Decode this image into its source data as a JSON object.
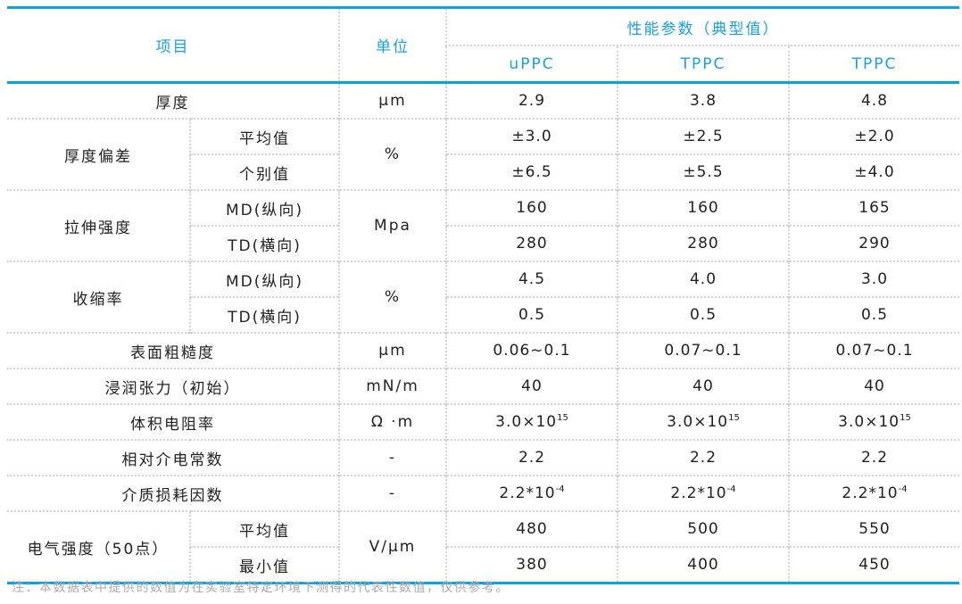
{
  "colors": {
    "accent": "#0aa3dd",
    "header_text": "#1aa0dc",
    "note_text": "#aaaaaa"
  },
  "header": {
    "item": "项目",
    "unit": "单位",
    "group": "性能参数（典型值）",
    "products": [
      "uPPC",
      "TPPC",
      "TPPC"
    ]
  },
  "rows": [
    {
      "item": "厚度",
      "unit": "μm",
      "values": [
        "2.9",
        "3.8",
        "4.8"
      ]
    },
    {
      "item": "厚度偏差",
      "unit": "%",
      "sub": [
        {
          "label": "平均值",
          "values": [
            "±3.0",
            "±2.5",
            "±2.0"
          ]
        },
        {
          "label": "个别值",
          "values": [
            "±6.5",
            "±5.5",
            "±4.0"
          ]
        }
      ]
    },
    {
      "item": "拉伸强度",
      "unit": "Mpa",
      "sub": [
        {
          "label": "MD(纵向)",
          "values": [
            "160",
            "160",
            "165"
          ]
        },
        {
          "label": "TD(横向)",
          "values": [
            "280",
            "280",
            "290"
          ]
        }
      ]
    },
    {
      "item": "收缩率",
      "unit": "%",
      "sub": [
        {
          "label": "MD(纵向)",
          "values": [
            "4.5",
            "4.0",
            "3.0"
          ]
        },
        {
          "label": "TD(横向)",
          "values": [
            "0.5",
            "0.5",
            "0.5"
          ]
        }
      ]
    },
    {
      "item": "表面粗糙度",
      "unit": "μm",
      "values": [
        "0.06~0.1",
        "0.07~0.1",
        "0.07~0.1"
      ]
    },
    {
      "item": "浸润张力（初始）",
      "unit": "mN/m",
      "values": [
        "40",
        "40",
        "40"
      ]
    },
    {
      "item": "体积电阻率",
      "unit": "Ω ·m",
      "values": [
        {
          "base": "3.0×10",
          "sup": "15"
        },
        {
          "base": "3.0×10",
          "sup": "15"
        },
        {
          "base": "3.0×10",
          "sup": "15"
        }
      ]
    },
    {
      "item": "相对介电常数",
      "unit": "-",
      "values": [
        "2.2",
        "2.2",
        "2.2"
      ]
    },
    {
      "item": "介质损耗因数",
      "unit": "-",
      "values": [
        {
          "base": "2.2*10",
          "sup": "-4"
        },
        {
          "base": "2.2*10",
          "sup": "-4"
        },
        {
          "base": "2.2*10",
          "sup": "-4"
        }
      ]
    },
    {
      "item": "电气强度（50点）",
      "unit": "V/μm",
      "sub": [
        {
          "label": "平均值",
          "values": [
            "480",
            "500",
            "550"
          ]
        },
        {
          "label": "最小值",
          "values": [
            "380",
            "400",
            "450"
          ]
        }
      ]
    }
  ],
  "note": "注：本数据表中提供的数值为在实验室特定环境下测得的代表性数值，仅供参考。"
}
